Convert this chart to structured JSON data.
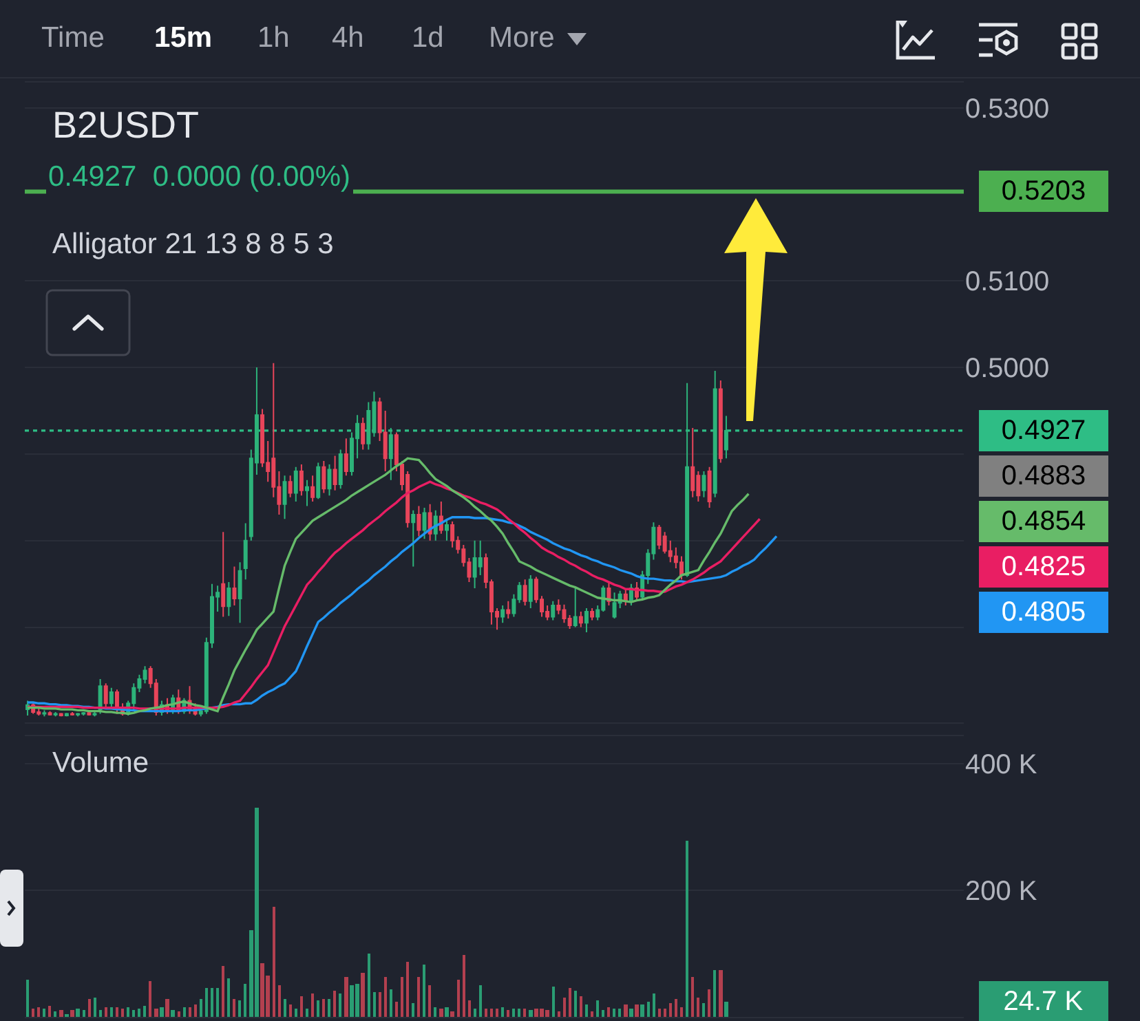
{
  "chart_data": [
    {
      "type": "other",
      "annotations": [
        "Time",
        "15m",
        "1h",
        "4h",
        "1d",
        "More"
      ]
    },
    {
      "type": "candlestick",
      "title": "B2USDT",
      "subtitle": "0.4927  0.0000 (0.00%)",
      "annotations": [
        "Alligator 21 13 8 8 5 3",
        "0.4883",
        "0.4854",
        "0.4825",
        "0.4805"
      ],
      "categories": [
        null,
        null,
        null,
        null,
        null,
        null,
        null,
        null,
        null,
        null,
        null,
        null,
        null,
        null,
        null,
        null,
        null,
        null,
        null,
        null,
        null,
        null,
        null,
        null,
        null,
        null,
        null,
        null,
        null,
        null,
        null,
        null,
        null,
        null,
        null,
        null,
        null,
        null,
        null,
        null,
        null,
        null,
        null,
        null,
        null,
        null,
        null,
        null,
        null,
        null,
        null,
        null,
        null,
        null,
        null,
        null,
        null,
        null,
        null,
        null,
        null,
        null,
        null,
        null,
        null,
        null,
        null,
        null,
        null,
        null,
        null,
        null,
        null,
        null,
        null,
        null,
        null,
        null,
        null,
        null,
        null,
        null,
        null,
        null,
        null,
        null,
        null,
        null,
        null,
        null,
        null,
        null,
        null,
        null,
        null,
        null,
        null,
        null,
        null,
        null,
        null,
        null,
        null,
        null,
        null,
        null,
        null,
        null,
        null,
        null,
        null,
        null,
        null,
        null,
        null,
        null,
        null,
        null,
        null,
        null,
        null,
        null,
        null,
        null,
        null,
        null,
        null,
        null,
        null,
        null,
        null,
        null,
        null,
        null,
        null,
        null,
        null,
        null,
        null,
        null,
        null,
        null,
        null,
        null,
        null,
        null,
        null,
        null,
        null,
        null,
        null,
        null,
        null,
        null,
        null,
        null,
        null,
        null,
        null,
        null,
        null,
        null,
        null,
        null,
        null,
        null,
        null,
        null
      ],
      "ohlc": [
        [
          0.4605,
          0.4615,
          0.4598,
          0.461
        ],
        [
          0.461,
          0.4612,
          0.46,
          0.4602
        ],
        [
          0.4602,
          0.4606,
          0.4598,
          0.46
        ],
        [
          0.46,
          0.4604,
          0.4597,
          0.4601
        ],
        [
          0.4601,
          0.4603,
          0.4598,
          0.4599
        ],
        [
          0.4599,
          0.4602,
          0.4597,
          0.46
        ],
        [
          0.46,
          0.4601,
          0.4597,
          0.4598
        ],
        [
          0.4598,
          0.4601,
          0.4597,
          0.46
        ],
        [
          0.46,
          0.4602,
          0.4598,
          0.4599
        ],
        [
          0.4599,
          0.4601,
          0.4597,
          0.46
        ],
        [
          0.46,
          0.4602,
          0.4598,
          0.4601
        ],
        [
          0.4601,
          0.4603,
          0.4598,
          0.4599
        ],
        [
          0.4599,
          0.4602,
          0.4597,
          0.46
        ],
        [
          0.4605,
          0.464,
          0.46,
          0.4632
        ],
        [
          0.4632,
          0.4635,
          0.4605,
          0.4612
        ],
        [
          0.4612,
          0.463,
          0.4605,
          0.4625
        ],
        [
          0.4625,
          0.4628,
          0.46,
          0.4605
        ],
        [
          0.4605,
          0.4612,
          0.4598,
          0.46
        ],
        [
          0.46,
          0.4615,
          0.4598,
          0.4612
        ],
        [
          0.4612,
          0.4635,
          0.4605,
          0.463
        ],
        [
          0.463,
          0.4645,
          0.4625,
          0.464
        ],
        [
          0.464,
          0.4655,
          0.4635,
          0.465
        ],
        [
          0.4652,
          0.4655,
          0.463,
          0.4635
        ],
        [
          0.4635,
          0.464,
          0.4598,
          0.4602
        ],
        [
          0.4602,
          0.4615,
          0.4598,
          0.461
        ],
        [
          0.461,
          0.4618,
          0.46,
          0.4605
        ],
        [
          0.4605,
          0.4622,
          0.46,
          0.4618
        ],
        [
          0.4618,
          0.4628,
          0.46,
          0.4603
        ],
        [
          0.4603,
          0.4618,
          0.46,
          0.4615
        ],
        [
          0.4615,
          0.4632,
          0.46,
          0.4605
        ],
        [
          0.4605,
          0.4612,
          0.4598,
          0.46
        ],
        [
          0.46,
          0.4606,
          0.4597,
          0.4603
        ],
        [
          0.4603,
          0.4688,
          0.46,
          0.4682
        ],
        [
          0.4682,
          0.475,
          0.4676,
          0.4735
        ],
        [
          0.4735,
          0.4748,
          0.4718,
          0.474
        ],
        [
          0.475,
          0.481,
          0.4712,
          0.4724
        ],
        [
          0.4724,
          0.4752,
          0.4713,
          0.4745
        ],
        [
          0.4745,
          0.477,
          0.4725,
          0.4733
        ],
        [
          0.4733,
          0.4775,
          0.4705,
          0.4765
        ],
        [
          0.4768,
          0.482,
          0.4755,
          0.48
        ],
        [
          0.4805,
          0.4905,
          0.48,
          0.4895
        ],
        [
          0.489,
          0.5,
          0.4876,
          0.4945
        ],
        [
          0.4945,
          0.4952,
          0.4885,
          0.489
        ],
        [
          0.489,
          0.4915,
          0.4868,
          0.488
        ],
        [
          0.4895,
          0.5005,
          0.485,
          0.4862
        ],
        [
          0.4862,
          0.488,
          0.483,
          0.4842
        ],
        [
          0.4842,
          0.4875,
          0.4825,
          0.4868
        ],
        [
          0.4868,
          0.4875,
          0.485,
          0.4855
        ],
        [
          0.4855,
          0.4885,
          0.4845,
          0.488
        ],
        [
          0.488,
          0.4888,
          0.4852,
          0.4858
        ],
        [
          0.4858,
          0.487,
          0.484,
          0.4862
        ],
        [
          0.4862,
          0.4875,
          0.4845,
          0.485
        ],
        [
          0.485,
          0.489,
          0.4848,
          0.4885
        ],
        [
          0.4885,
          0.4892,
          0.4855,
          0.486
        ],
        [
          0.486,
          0.4888,
          0.4852,
          0.4882
        ],
        [
          0.4882,
          0.4898,
          0.4858,
          0.4865
        ],
        [
          0.4865,
          0.4905,
          0.486,
          0.49
        ],
        [
          0.49,
          0.4918,
          0.4875,
          0.488
        ],
        [
          0.488,
          0.4925,
          0.4875,
          0.4918
        ],
        [
          0.4918,
          0.4945,
          0.4895,
          0.4935
        ],
        [
          0.4935,
          0.4942,
          0.4905,
          0.4912
        ],
        [
          0.4912,
          0.496,
          0.4905,
          0.495
        ],
        [
          0.4925,
          0.4972,
          0.492,
          0.496
        ],
        [
          0.496,
          0.4965,
          0.4915,
          0.4925
        ],
        [
          0.4925,
          0.495,
          0.488,
          0.4895
        ],
        [
          0.4895,
          0.493,
          0.487,
          0.4922
        ],
        [
          0.4922,
          0.4925,
          0.488,
          0.4888
        ],
        [
          0.4888,
          0.4892,
          0.4858,
          0.4865
        ],
        [
          0.4876,
          0.488,
          0.4815,
          0.4821
        ],
        [
          0.4821,
          0.4835,
          0.477,
          0.483
        ],
        [
          0.483,
          0.484,
          0.4805,
          0.4812
        ],
        [
          0.4812,
          0.4838,
          0.4802,
          0.4832
        ],
        [
          0.4832,
          0.4842,
          0.48,
          0.4808
        ],
        [
          0.4808,
          0.4835,
          0.48,
          0.4828
        ],
        [
          0.4828,
          0.4845,
          0.4808,
          0.4812
        ],
        [
          0.4812,
          0.4825,
          0.48,
          0.4818
        ],
        [
          0.4818,
          0.4822,
          0.4792,
          0.48
        ],
        [
          0.48,
          0.4805,
          0.4785,
          0.479
        ],
        [
          0.479,
          0.4795,
          0.477,
          0.4775
        ],
        [
          0.4775,
          0.478,
          0.4752,
          0.4758
        ],
        [
          0.4758,
          0.48,
          0.4745,
          0.478
        ],
        [
          0.477,
          0.48,
          0.476,
          0.478
        ],
        [
          0.478,
          0.4785,
          0.4745,
          0.4752
        ],
        [
          0.4752,
          0.4755,
          0.4703,
          0.4718
        ],
        [
          0.4718,
          0.4722,
          0.4697,
          0.4712
        ],
        [
          0.4712,
          0.4725,
          0.4705,
          0.472
        ],
        [
          0.472,
          0.473,
          0.471,
          0.4716
        ],
        [
          0.4716,
          0.4738,
          0.4712,
          0.4732
        ],
        [
          0.4732,
          0.4752,
          0.4728,
          0.4748
        ],
        [
          0.4748,
          0.4755,
          0.4725,
          0.473
        ],
        [
          0.473,
          0.476,
          0.4722,
          0.4755
        ],
        [
          0.4755,
          0.4758,
          0.4728,
          0.4732
        ],
        [
          0.4732,
          0.4736,
          0.4712,
          0.4718
        ],
        [
          0.4718,
          0.4725,
          0.4708,
          0.4712
        ],
        [
          0.4712,
          0.473,
          0.4708,
          0.4725
        ],
        [
          0.4725,
          0.4732,
          0.4715,
          0.472
        ],
        [
          0.472,
          0.4726,
          0.4705,
          0.471
        ],
        [
          0.471,
          0.4714,
          0.4698,
          0.4702
        ],
        [
          0.4702,
          0.4745,
          0.47,
          0.4712
        ],
        [
          0.4712,
          0.4718,
          0.47,
          0.4705
        ],
        [
          0.4705,
          0.4722,
          0.4694,
          0.4718
        ],
        [
          0.4718,
          0.4722,
          0.4708,
          0.4712
        ],
        [
          0.4712,
          0.4725,
          0.4708,
          0.472
        ],
        [
          0.472,
          0.4748,
          0.4718,
          0.4745
        ],
        [
          0.4745,
          0.4752,
          0.4725,
          0.473
        ],
        [
          0.4712,
          0.474,
          0.471,
          0.4728
        ],
        [
          0.4728,
          0.4742,
          0.4722,
          0.4738
        ],
        [
          0.4738,
          0.4745,
          0.4725,
          0.473
        ],
        [
          0.473,
          0.475,
          0.4725,
          0.4745
        ],
        [
          0.4745,
          0.4752,
          0.473,
          0.4735
        ],
        [
          0.4735,
          0.4765,
          0.4732,
          0.476
        ],
        [
          0.476,
          0.479,
          0.475,
          0.4785
        ],
        [
          0.4785,
          0.4821,
          0.4778,
          0.4815
        ],
        [
          0.4815,
          0.4818,
          0.479,
          0.4795
        ],
        [
          0.4805,
          0.481,
          0.4785,
          0.4788
        ],
        [
          0.4788,
          0.48,
          0.4775,
          0.4782
        ],
        [
          0.4782,
          0.4792,
          0.4768,
          0.4775
        ],
        [
          0.4775,
          0.4782,
          0.4755,
          0.476
        ],
        [
          0.476,
          0.4982,
          0.4758,
          0.4885
        ],
        [
          0.4885,
          0.493,
          0.485,
          0.4858
        ],
        [
          0.4875,
          0.488,
          0.4845,
          0.4852
        ],
        [
          0.4858,
          0.488,
          0.485,
          0.4875
        ],
        [
          0.488,
          0.4885,
          0.4838,
          0.4845
        ],
        [
          0.4855,
          0.4996,
          0.485,
          0.4975
        ],
        [
          0.4975,
          0.4985,
          0.489,
          0.4895
        ],
        [
          0.4905,
          0.4944,
          0.4895,
          0.4927
        ],
        null,
        null,
        null,
        null,
        null,
        null,
        null,
        null,
        null,
        null,
        null,
        null,
        null,
        null,
        null,
        null,
        null,
        null,
        null,
        null,
        null,
        null,
        null,
        null,
        null,
        null,
        null,
        null,
        null,
        null,
        null,
        null,
        null,
        null,
        null,
        null,
        null,
        null,
        null,
        null,
        null,
        null
      ],
      "series": [
        {
          "type": "line",
          "color": "#2196f3",
          "values": [
            0.4613,
            0.4613,
            0.4612,
            0.4612,
            0.4611,
            0.4611,
            0.461,
            0.461,
            0.4609,
            0.4609,
            0.4608,
            0.4608,
            0.4607,
            0.4607,
            0.4606,
            0.4606,
            0.4605,
            0.4605,
            0.4604,
            0.4604,
            0.4603,
            0.4603,
            0.4603,
            0.4603,
            0.4603,
            0.4603,
            0.4603,
            0.4603,
            0.4604,
            0.4604,
            0.4604,
            0.4605,
            0.4606,
            0.4607,
            0.4608,
            0.461,
            0.4611,
            0.4611,
            0.4611,
            0.4612,
            0.4612,
            0.4616,
            0.4621,
            0.4625,
            0.4628,
            0.4632,
            0.4635,
            0.4642,
            0.4649,
            0.4663,
            0.4678,
            0.4692,
            0.4706,
            0.4711,
            0.4717,
            0.4722,
            0.4728,
            0.4733,
            0.4738,
            0.4744,
            0.4749,
            0.4754,
            0.476,
            0.4765,
            0.477,
            0.4776,
            0.4781,
            0.4787,
            0.4792,
            0.4797,
            0.4803,
            0.4808,
            0.4813,
            0.4817,
            0.482,
            0.4824,
            0.4827,
            0.4827,
            0.4827,
            0.4827,
            0.4826,
            0.4826,
            0.4826,
            0.4825,
            0.4824,
            0.4823,
            0.4821,
            0.482,
            0.4817,
            0.4814,
            0.481,
            0.4807,
            0.4804,
            0.4801,
            0.4797,
            0.4794,
            0.4791,
            0.4789,
            0.4786,
            0.4783,
            0.4781,
            0.4778,
            0.4776,
            0.4773,
            0.4771,
            0.4769,
            0.4766,
            0.4764,
            0.4762,
            0.4759,
            0.4757,
            0.4756,
            0.4756,
            0.4755,
            0.4754,
            0.4754,
            0.4753,
            0.4753,
            0.4752,
            0.4753,
            0.4754,
            0.4755,
            0.4756,
            0.4757,
            0.4758,
            0.476,
            0.4764,
            0.4767,
            0.4771,
            0.4774,
            0.4778,
            0.4785,
            0.4791,
            0.4798,
            0.4805,
            null,
            null,
            null,
            null,
            null,
            null,
            null,
            null,
            null,
            null,
            null,
            null,
            null,
            null,
            null,
            null,
            null,
            null,
            null,
            null,
            null,
            null,
            null,
            null,
            null,
            null,
            null,
            null,
            null,
            null,
            null,
            null,
            null
          ]
        },
        {
          "type": "line",
          "color": "#e91e63",
          "values": [
            0.4608,
            0.4608,
            0.4608,
            0.4608,
            0.4608,
            0.4608,
            0.4608,
            0.4608,
            0.4608,
            0.4608,
            0.4607,
            0.4607,
            0.4607,
            0.4607,
            0.4607,
            0.4607,
            0.4607,
            0.4607,
            0.4607,
            0.4607,
            0.4606,
            0.4606,
            0.4606,
            0.4606,
            0.4606,
            0.4606,
            0.4606,
            0.4606,
            0.4607,
            0.4607,
            0.4607,
            0.4607,
            0.4607,
            0.4607,
            0.4607,
            0.4608,
            0.461,
            0.4613,
            0.4615,
            0.4623,
            0.4631,
            0.464,
            0.4648,
            0.4656,
            0.4671,
            0.4686,
            0.4701,
            0.4713,
            0.4725,
            0.4737,
            0.4749,
            0.4756,
            0.4764,
            0.4771,
            0.4779,
            0.4786,
            0.4791,
            0.4797,
            0.4802,
            0.4807,
            0.4812,
            0.4818,
            0.4823,
            0.4828,
            0.4834,
            0.4839,
            0.4844,
            0.485,
            0.4855,
            0.4858,
            0.4862,
            0.4865,
            0.4868,
            0.4865,
            0.4863,
            0.486,
            0.4858,
            0.4855,
            0.4852,
            0.485,
            0.4847,
            0.4844,
            0.4842,
            0.4839,
            0.4836,
            0.4831,
            0.4825,
            0.482,
            0.4814,
            0.4809,
            0.4803,
            0.4798,
            0.4792,
            0.4788,
            0.4785,
            0.4781,
            0.4778,
            0.4774,
            0.4771,
            0.4767,
            0.4764,
            0.476,
            0.4757,
            0.4755,
            0.4752,
            0.4749,
            0.4747,
            0.4744,
            0.4744,
            0.4743,
            0.4743,
            0.4742,
            0.4742,
            0.4741,
            0.4741,
            0.4744,
            0.4747,
            0.4749,
            0.4752,
            0.4755,
            0.4759,
            0.4763,
            0.4768,
            0.4772,
            0.4776,
            0.4783,
            0.479,
            0.4797,
            0.4804,
            0.4811,
            0.4818,
            0.4825,
            null,
            null,
            null,
            null,
            null,
            null,
            null,
            null,
            null,
            null,
            null,
            null,
            null,
            null,
            null,
            null,
            null,
            null,
            null,
            null,
            null,
            null,
            null,
            null,
            null,
            null,
            null,
            null,
            null,
            null,
            null,
            null,
            null,
            null,
            null,
            null
          ]
        },
        {
          "type": "line",
          "color": "#66bb6a",
          "values": [
            0.4607,
            0.4607,
            0.4607,
            0.4606,
            0.4606,
            0.4606,
            0.4605,
            0.4605,
            0.4605,
            0.4604,
            0.4604,
            0.4603,
            0.4603,
            0.4603,
            0.4602,
            0.4602,
            0.4601,
            0.4601,
            0.46,
            0.4601,
            0.4603,
            0.4604,
            0.4606,
            0.4607,
            0.4608,
            0.461,
            0.4611,
            0.4613,
            0.4614,
            0.4612,
            0.461,
            0.4609,
            0.4607,
            0.4605,
            0.4603,
            0.4619,
            0.4634,
            0.465,
            0.4662,
            0.4674,
            0.4685,
            0.4697,
            0.4704,
            0.4711,
            0.4718,
            0.4745,
            0.4771,
            0.4787,
            0.4802,
            0.4809,
            0.4816,
            0.4823,
            0.4827,
            0.4831,
            0.4835,
            0.4839,
            0.4843,
            0.4847,
            0.4852,
            0.4856,
            0.486,
            0.4864,
            0.4868,
            0.4872,
            0.4876,
            0.4881,
            0.4886,
            0.489,
            0.4895,
            0.4894,
            0.4893,
            0.4886,
            0.4878,
            0.4871,
            0.4867,
            0.4863,
            0.4858,
            0.4854,
            0.485,
            0.4845,
            0.4839,
            0.4834,
            0.4828,
            0.4823,
            0.4816,
            0.4808,
            0.4797,
            0.4787,
            0.4776,
            0.4773,
            0.477,
            0.4766,
            0.4763,
            0.476,
            0.4757,
            0.4754,
            0.4751,
            0.4748,
            0.4746,
            0.4743,
            0.474,
            0.4737,
            0.4734,
            0.4733,
            0.4732,
            0.4731,
            0.4731,
            0.473,
            0.4729,
            0.4731,
            0.4732,
            0.4734,
            0.4735,
            0.4737,
            0.4743,
            0.4749,
            0.4754,
            0.476,
            0.4762,
            0.4764,
            0.4766,
            0.4777,
            0.4787,
            0.4798,
            0.4808,
            0.4821,
            0.4834,
            0.4841,
            0.4847,
            0.4854,
            null,
            null,
            null,
            null,
            null,
            null,
            null,
            null,
            null,
            null,
            null,
            null,
            null,
            null,
            null,
            null,
            null,
            null,
            null,
            null,
            null,
            null,
            null,
            null,
            null,
            null,
            null,
            null,
            null,
            null,
            null,
            null,
            null,
            null,
            null,
            null,
            null,
            null
          ]
        }
      ],
      "ylim": [
        0.459,
        0.5329
      ],
      "yticks": [
        {
          "value": 0.47,
          "label": null
        },
        {
          "value": 0.48,
          "label": null
        },
        {
          "value": 0.49,
          "label": null
        },
        {
          "value": 0.5,
          "label": "0.5000"
        },
        {
          "value": 0.51,
          "label": "0.5100"
        },
        {
          "value": 0.53,
          "label": "0.5300"
        }
      ],
      "ref_lines": [
        {
          "axis": "y",
          "value": 0.5203,
          "label": "0.5203",
          "color": "#4caf50",
          "line_style": "solid"
        },
        {
          "axis": "y",
          "value": 0.4927,
          "label": "0.4927",
          "color": "#2ebd85",
          "line_style": "dotted"
        }
      ],
      "grid": "y",
      "tick_labels": "y"
    },
    {
      "type": "bar",
      "title": "Volume",
      "annotations": [
        "24.7 K"
      ],
      "categories": [
        null,
        null,
        null,
        null,
        null,
        null,
        null,
        null,
        null,
        null,
        null,
        null,
        null,
        null,
        null,
        null,
        null,
        null,
        null,
        null,
        null,
        null,
        null,
        null,
        null,
        null,
        null,
        null,
        null,
        null,
        null,
        null,
        null,
        null,
        null,
        null,
        null,
        null,
        null,
        null,
        null,
        null,
        null,
        null,
        null,
        null,
        null,
        null,
        null,
        null,
        null,
        null,
        null,
        null,
        null,
        null,
        null,
        null,
        null,
        null,
        null,
        null,
        null,
        null,
        null,
        null,
        null,
        null,
        null,
        null,
        null,
        null,
        null,
        null,
        null,
        null,
        null,
        null,
        null,
        null,
        null,
        null,
        null,
        null,
        null,
        null,
        null,
        null,
        null,
        null,
        null,
        null,
        null,
        null,
        null,
        null,
        null,
        null,
        null,
        null,
        null,
        null,
        null,
        null,
        null,
        null,
        null,
        null,
        null,
        null,
        null,
        null,
        null,
        null,
        null,
        null,
        null,
        null,
        null,
        null,
        null,
        null,
        null,
        null,
        null,
        null,
        null,
        null,
        null,
        null,
        null,
        null,
        null,
        null,
        null,
        null,
        null,
        null,
        null,
        null,
        null,
        null,
        null,
        null,
        null,
        null,
        null,
        null,
        null,
        null,
        null,
        null,
        null,
        null,
        null,
        null,
        null,
        null,
        null,
        null,
        null,
        null,
        null,
        null,
        null,
        null,
        null,
        null
      ],
      "values": [
        58000,
        12000,
        16000,
        14000,
        18000,
        9000,
        10000,
        5000,
        10000,
        14000,
        11000,
        28000,
        31000,
        10000,
        16000,
        15000,
        15000,
        14000,
        15000,
        11000,
        14000,
        18000,
        57000,
        12000,
        15000,
        28000,
        10000,
        9000,
        15000,
        15000,
        20000,
        28000,
        45000,
        45000,
        46000,
        80000,
        60000,
        28000,
        26000,
        53000,
        137000,
        330000,
        84000,
        66000,
        174000,
        51000,
        28000,
        19000,
        12000,
        32000,
        14000,
        38000,
        27000,
        28000,
        28000,
        42000,
        38000,
        62000,
        50000,
        53000,
        70000,
        100000,
        39000,
        40000,
        63000,
        43000,
        23000,
        63000,
        87000,
        22000,
        62000,
        82000,
        49000,
        16000,
        12000,
        16000,
        8000,
        58000,
        97000,
        25000,
        12000,
        49000,
        12000,
        12000,
        13000,
        15000,
        10000,
        14000,
        12000,
        13000,
        10000,
        14000,
        12000,
        10000,
        47000,
        8000,
        30000,
        45000,
        42000,
        32000,
        20000,
        8000,
        27000,
        10000,
        16000,
        12000,
        14000,
        20000,
        12000,
        20000,
        20000,
        23000,
        36000,
        14000,
        14000,
        22000,
        28000,
        15000,
        278000,
        63000,
        30000,
        22000,
        43000,
        73000,
        73000,
        24700,
        null,
        null,
        null,
        null,
        null,
        null,
        null,
        null,
        null,
        null,
        null,
        null,
        null,
        null,
        null,
        null,
        null,
        null,
        null,
        null,
        null,
        null,
        null,
        null,
        null,
        null,
        null,
        null,
        null,
        null,
        null,
        null,
        null,
        null,
        null,
        null,
        null,
        null,
        null,
        null,
        null,
        null
      ],
      "colors": [
        "#2a9d73",
        "#b3404f",
        "#b3404f",
        "#2a9d73",
        "#b3404f",
        "#2a9d73",
        "#b3404f",
        "#2a9d73",
        "#b3404f",
        "#2a9d73",
        "#2a9d73",
        "#b3404f",
        "#2a9d73",
        "#2a9d73",
        "#b3404f",
        "#2a9d73",
        "#b3404f",
        "#b3404f",
        "#2a9d73",
        "#2a9d73",
        "#2a9d73",
        "#2a9d73",
        "#b3404f",
        "#b3404f",
        "#2a9d73",
        "#b3404f",
        "#2a9d73",
        "#b3404f",
        "#2a9d73",
        "#b3404f",
        "#b3404f",
        "#2a9d73",
        "#2a9d73",
        "#2a9d73",
        "#2a9d73",
        "#b3404f",
        "#2a9d73",
        "#b3404f",
        "#2a9d73",
        "#2a9d73",
        "#2a9d73",
        "#2a9d73",
        "#b3404f",
        "#b3404f",
        "#b3404f",
        "#b3404f",
        "#2a9d73",
        "#b3404f",
        "#2a9d73",
        "#b3404f",
        "#2a9d73",
        "#b3404f",
        "#2a9d73",
        "#b3404f",
        "#2a9d73",
        "#b3404f",
        "#2a9d73",
        "#b3404f",
        "#2a9d73",
        "#2a9d73",
        "#b3404f",
        "#2a9d73",
        "#2a9d73",
        "#b3404f",
        "#b3404f",
        "#2a9d73",
        "#b3404f",
        "#b3404f",
        "#b3404f",
        "#2a9d73",
        "#b3404f",
        "#2a9d73",
        "#b3404f",
        "#2a9d73",
        "#b3404f",
        "#2a9d73",
        "#b3404f",
        "#b3404f",
        "#b3404f",
        "#b3404f",
        "#2a9d73",
        "#2a9d73",
        "#b3404f",
        "#b3404f",
        "#b3404f",
        "#2a9d73",
        "#b3404f",
        "#2a9d73",
        "#2a9d73",
        "#b3404f",
        "#2a9d73",
        "#b3404f",
        "#b3404f",
        "#b3404f",
        "#2a9d73",
        "#b3404f",
        "#b3404f",
        "#b3404f",
        "#2a9d73",
        "#b3404f",
        "#2a9d73",
        "#b3404f",
        "#2a9d73",
        "#2a9d73",
        "#b3404f",
        "#2a9d73",
        "#2a9d73",
        "#b3404f",
        "#2a9d73",
        "#b3404f",
        "#2a9d73",
        "#2a9d73",
        "#2a9d73",
        "#b3404f",
        "#b3404f",
        "#b3404f",
        "#b3404f",
        "#b3404f",
        "#2a9d73",
        "#b3404f",
        "#b3404f",
        "#2a9d73",
        "#b3404f",
        "#2a9d73",
        "#b3404f",
        "#2a9d73",
        null,
        null,
        null,
        null,
        null,
        null,
        null,
        null,
        null,
        null,
        null,
        null,
        null,
        null,
        null,
        null,
        null,
        null,
        null,
        null,
        null,
        null,
        null,
        null,
        null,
        null,
        null,
        null,
        null,
        null,
        null,
        null,
        null,
        null,
        null,
        null,
        null,
        null,
        null,
        null,
        null,
        null
      ],
      "ylim": [
        0,
        443000
      ],
      "yticks": [
        {
          "value": 200000,
          "label": "200 K"
        },
        {
          "value": 400000,
          "label": "400 K"
        }
      ],
      "grid": "y",
      "tick_labels": "y"
    }
  ]
}
